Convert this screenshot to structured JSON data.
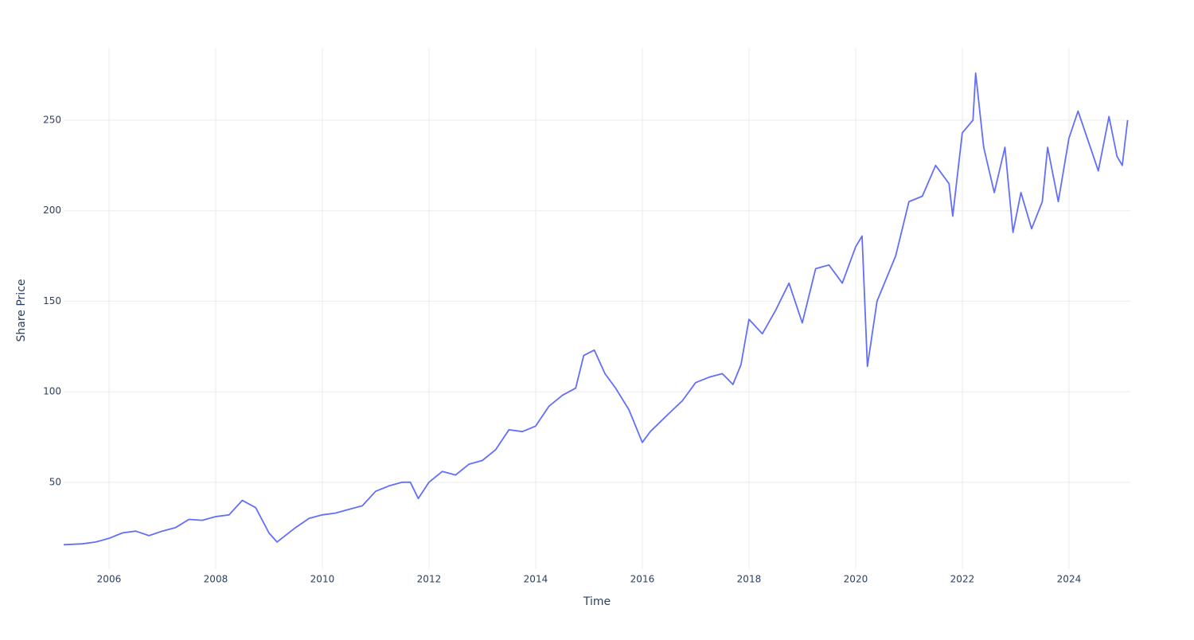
{
  "chart_data": {
    "type": "line",
    "x_label": "Time",
    "y_label": "Share Price",
    "x": [
      2005.15,
      2005.5,
      2005.75,
      2006.0,
      2006.25,
      2006.5,
      2006.75,
      2007.0,
      2007.25,
      2007.5,
      2007.75,
      2008.0,
      2008.25,
      2008.5,
      2008.75,
      2009.0,
      2009.15,
      2009.5,
      2009.75,
      2010.0,
      2010.25,
      2010.5,
      2010.75,
      2011.0,
      2011.25,
      2011.5,
      2011.65,
      2011.8,
      2012.0,
      2012.25,
      2012.5,
      2012.75,
      2013.0,
      2013.25,
      2013.5,
      2013.75,
      2014.0,
      2014.25,
      2014.5,
      2014.75,
      2014.9,
      2015.1,
      2015.3,
      2015.5,
      2015.75,
      2016.0,
      2016.15,
      2016.5,
      2016.75,
      2017.0,
      2017.25,
      2017.5,
      2017.7,
      2017.85,
      2018.0,
      2018.25,
      2018.5,
      2018.75,
      2019.0,
      2019.25,
      2019.5,
      2019.75,
      2020.0,
      2020.12,
      2020.22,
      2020.4,
      2020.75,
      2021.0,
      2021.25,
      2021.5,
      2021.75,
      2021.82,
      2022.0,
      2022.2,
      2022.25,
      2022.4,
      2022.6,
      2022.8,
      2022.95,
      2023.1,
      2023.3,
      2023.5,
      2023.6,
      2023.8,
      2024.0,
      2024.17,
      2024.4,
      2024.55,
      2024.75,
      2024.9,
      2025.0,
      2025.1
    ],
    "series": [
      {
        "color": "#636efa",
        "values": [
          15.5,
          16,
          17,
          19,
          22,
          23,
          20.5,
          23,
          25,
          29.5,
          29,
          31,
          32,
          40,
          36,
          22,
          17,
          25,
          30,
          32,
          33,
          35,
          37,
          45,
          48,
          50,
          50,
          41,
          50,
          56,
          54,
          60,
          62,
          68,
          79,
          78,
          81,
          92,
          98,
          102,
          120,
          123,
          110,
          102,
          90,
          72,
          78,
          88,
          95,
          105,
          108,
          110,
          104,
          115,
          140,
          132,
          145,
          160,
          138,
          168,
          170,
          160,
          180,
          186,
          114,
          150,
          175,
          205,
          208,
          225,
          215,
          197,
          243,
          250,
          276,
          235,
          210,
          235,
          188,
          210,
          190,
          205,
          235,
          205,
          240,
          255,
          235,
          222,
          252,
          230,
          225,
          250
        ]
      }
    ],
    "xlim": [
      2005.15,
      2025.15
    ],
    "xticks": [
      2006,
      2008,
      2010,
      2012,
      2014,
      2016,
      2018,
      2020,
      2022,
      2024
    ],
    "ylim": [
      2,
      290
    ],
    "yticks": [
      50,
      100,
      150,
      200,
      250
    ],
    "grid": true
  }
}
